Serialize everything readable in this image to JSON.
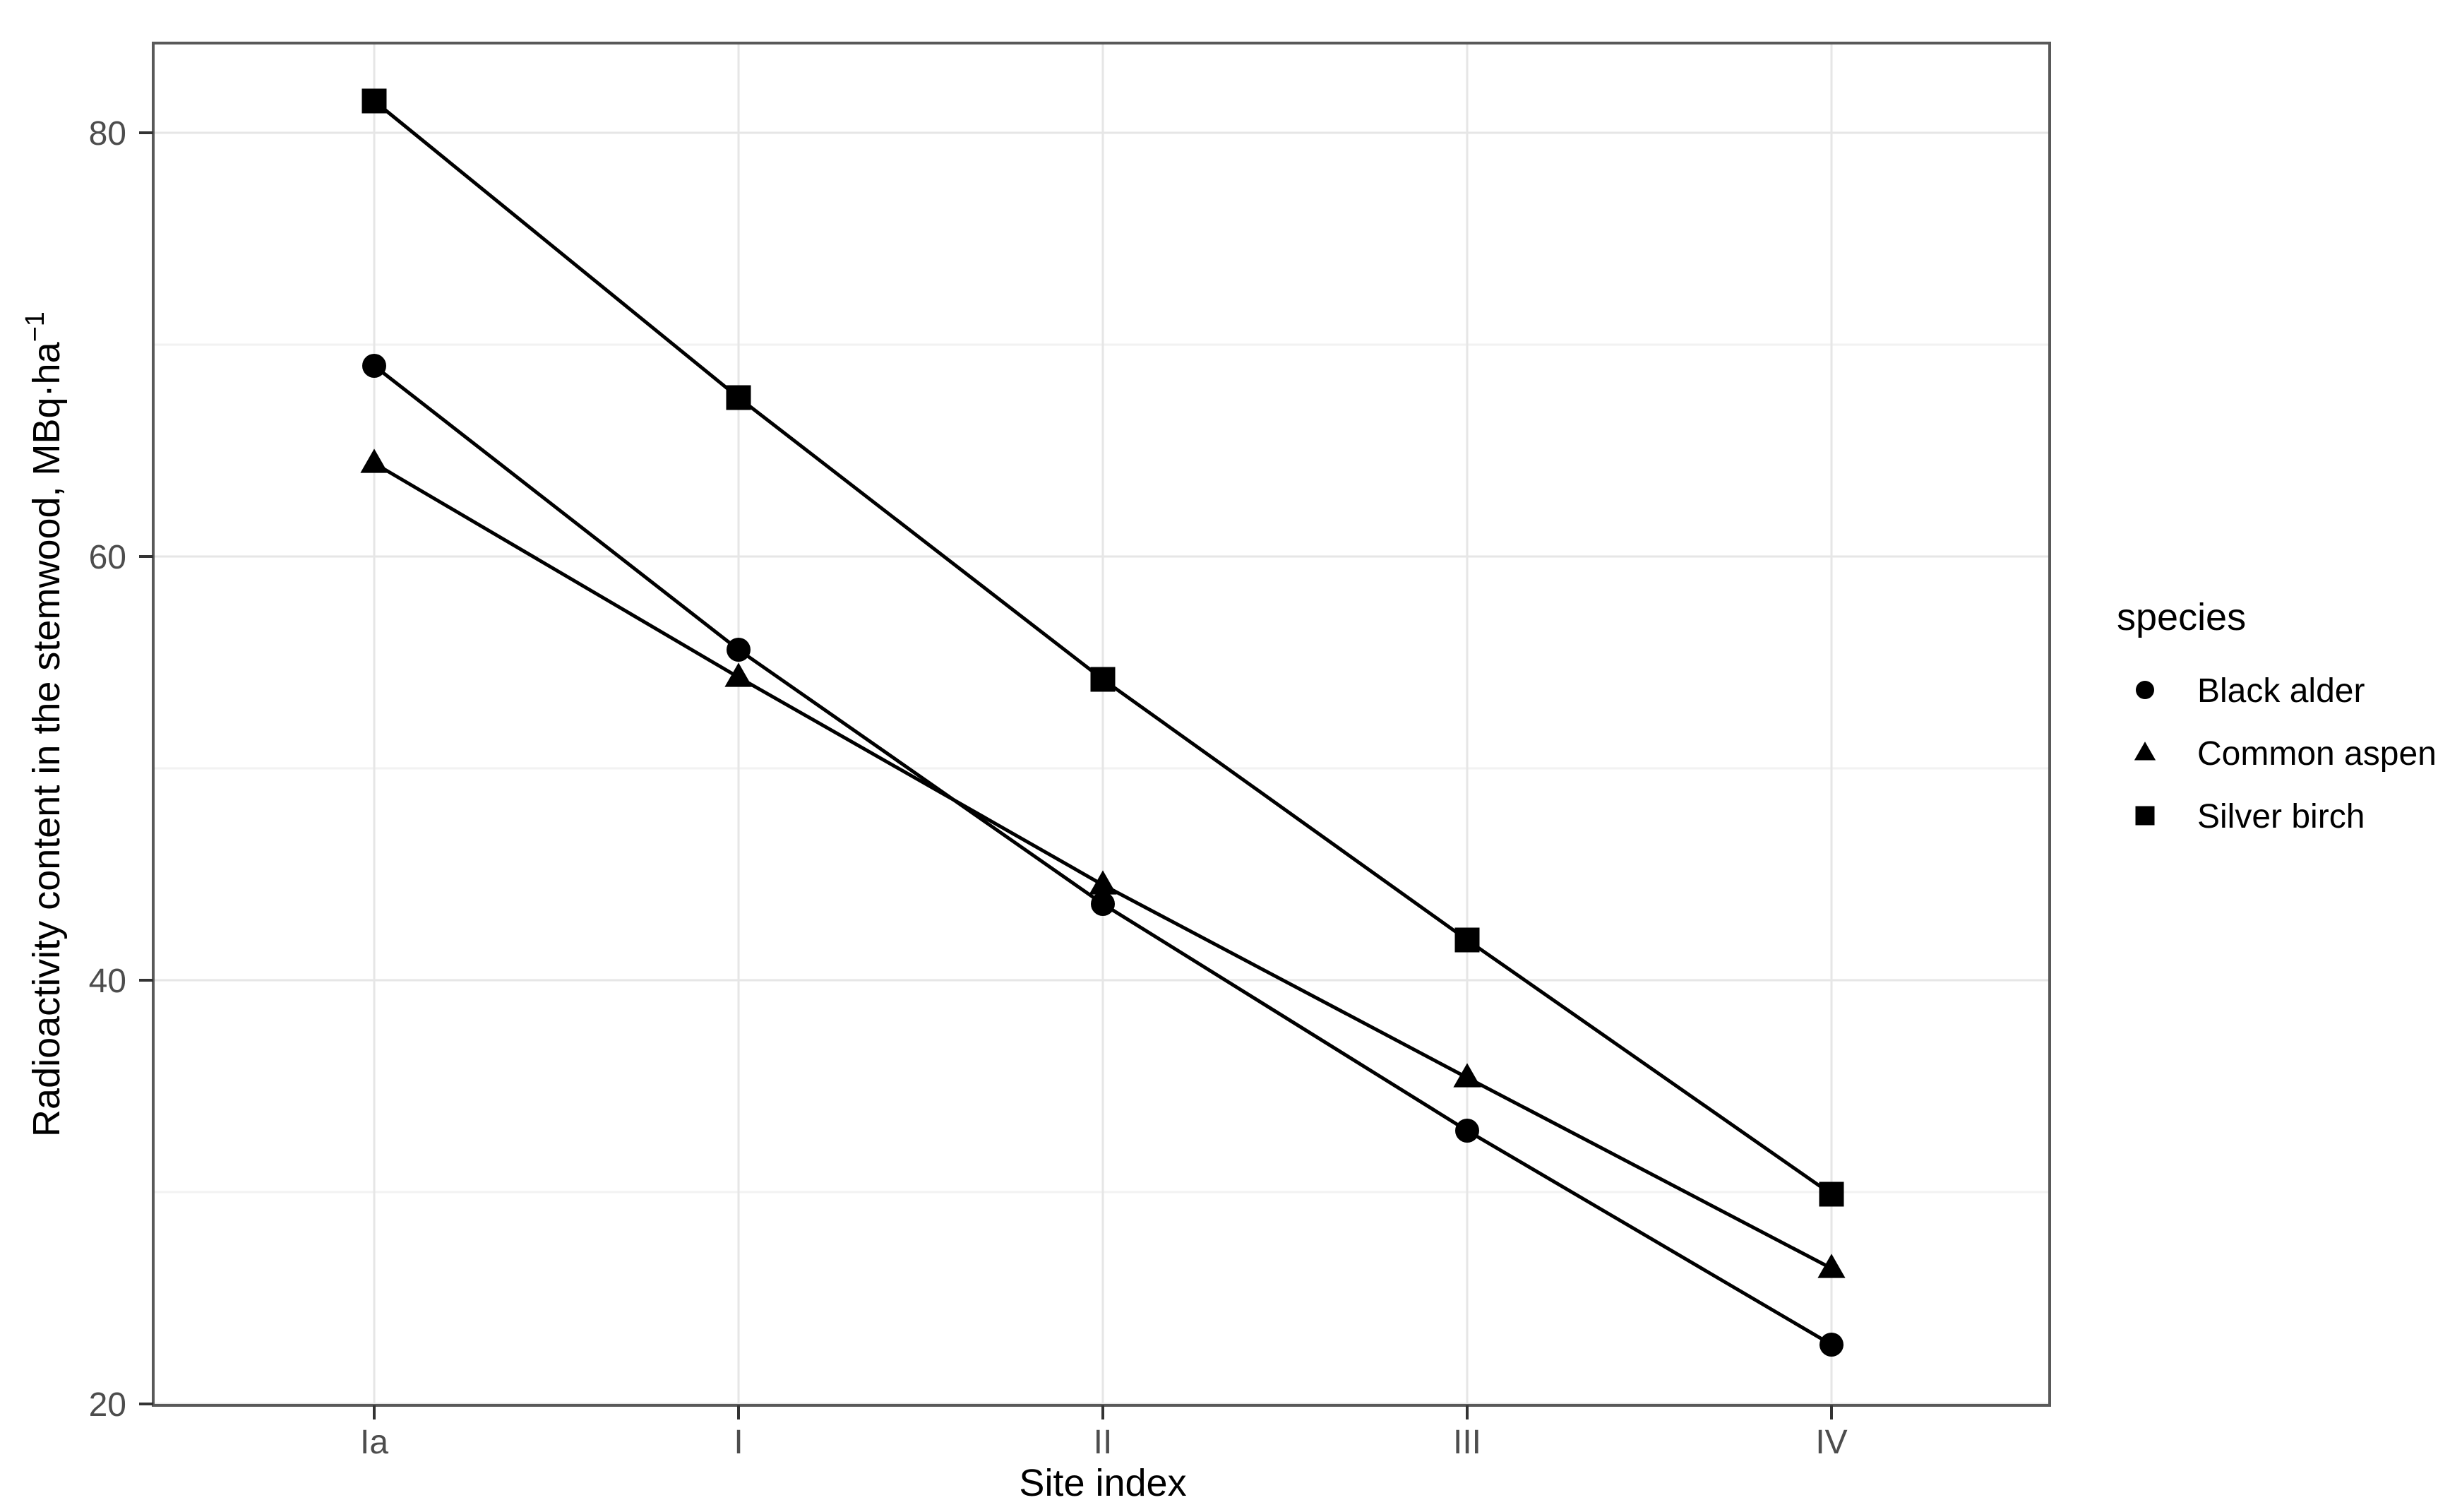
{
  "figure": {
    "background": "#ffffff"
  },
  "chart_data": {
    "type": "line",
    "title": "",
    "categories": [
      "Ia",
      "I",
      "II",
      "III",
      "IV"
    ],
    "series": [
      {
        "name": "Black alder",
        "marker": "circle",
        "color": "#000000",
        "values": [
          69.0,
          55.6,
          43.6,
          32.9,
          22.8
        ]
      },
      {
        "name": "Common aspen",
        "marker": "triangle",
        "color": "#000000",
        "values": [
          64.4,
          54.3,
          44.5,
          35.4,
          26.4
        ]
      },
      {
        "name": "Silver birch",
        "marker": "square",
        "color": "#000000",
        "values": [
          81.5,
          67.5,
          54.2,
          41.9,
          29.9
        ]
      }
    ],
    "xlabel": "Site index",
    "ylabel": "Radioactivity content in the stemwood, MBq·ha⁻¹",
    "ylabel_base": "Radioactivity content in the stemwood, MBq·ha",
    "ylabel_exponent": "−1",
    "ylim": [
      20,
      84.2
    ],
    "y_major_ticks": [
      20,
      40,
      60,
      80
    ],
    "y_minor_gridlines": [
      30,
      50,
      70
    ],
    "grid": "horizontal major+minor, vertical major at categories",
    "legend": {
      "title": "species",
      "position": "right",
      "items": [
        {
          "label": "Black alder",
          "marker": "circle"
        },
        {
          "label": "Common aspen",
          "marker": "triangle"
        },
        {
          "label": "Silver birch",
          "marker": "square"
        }
      ]
    },
    "colors": {
      "series": "#000000",
      "tick_labels": "#4d4d4d",
      "axis_titles": "#000000",
      "grid_major": "#e6e6e6",
      "grid_minor": "#f2f2f2",
      "panel_border": "#595959",
      "tick_marks": "#333333",
      "background": "#ffffff"
    }
  }
}
